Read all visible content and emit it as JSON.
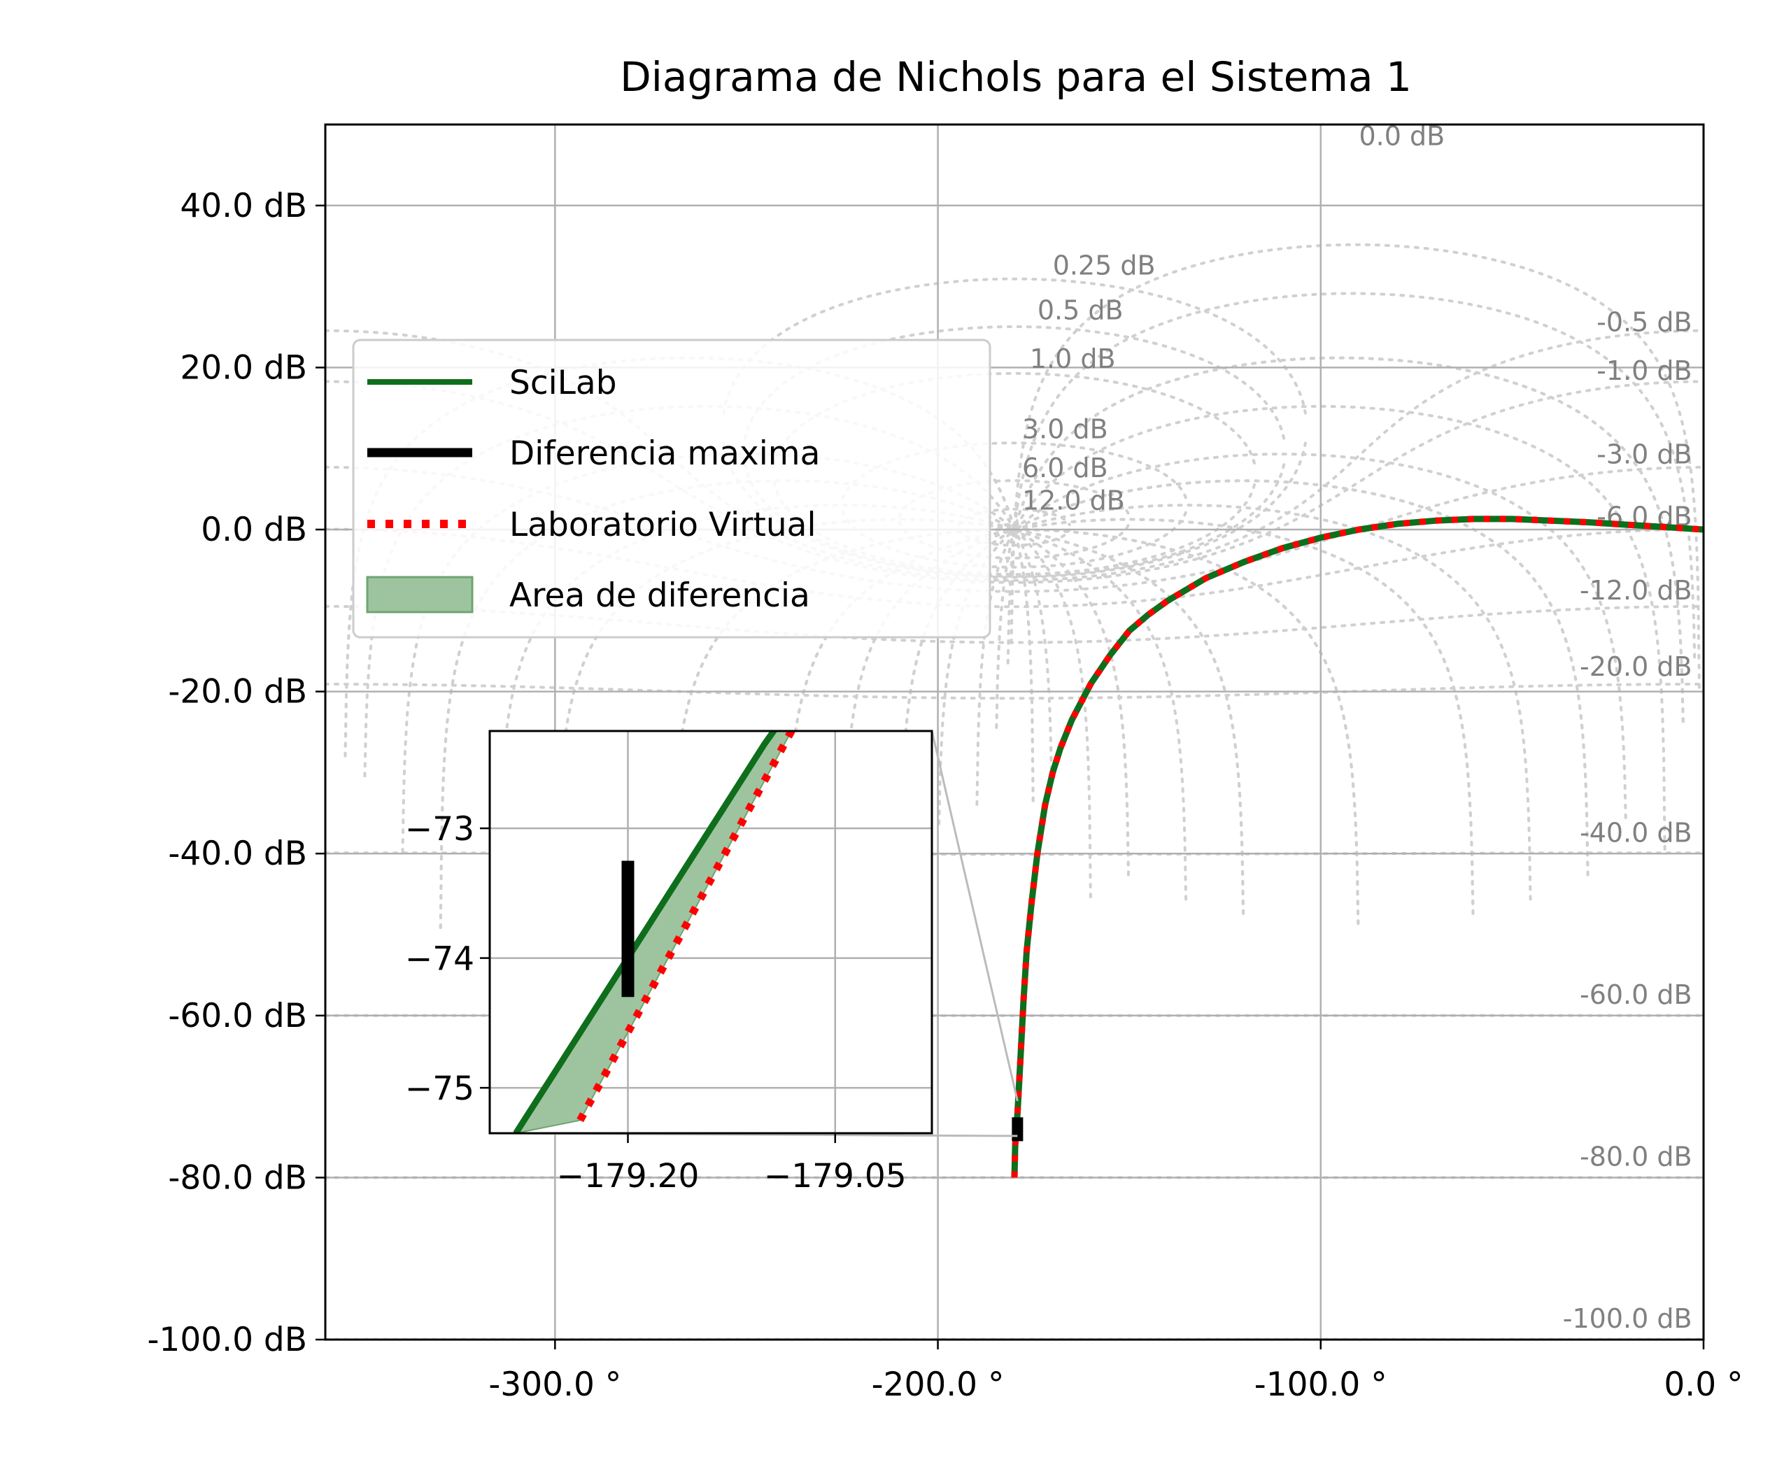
{
  "chart_data": {
    "type": "line",
    "title": "Diagrama de Nichols para el Sistema 1",
    "xlim": [
      -360,
      0
    ],
    "ylim": [
      -100,
      50
    ],
    "x_ticks": [
      {
        "value": -300,
        "label": "-300.0 °"
      },
      {
        "value": -200,
        "label": "-200.0 °"
      },
      {
        "value": -100,
        "label": "-100.0 °"
      },
      {
        "value": 0,
        "label": "0.0 °"
      }
    ],
    "y_ticks": [
      {
        "value": 40,
        "label": "40.0 dB"
      },
      {
        "value": 20,
        "label": "20.0 dB"
      },
      {
        "value": 0,
        "label": "0.0 dB"
      },
      {
        "value": -20,
        "label": "-20.0 dB"
      },
      {
        "value": -40,
        "label": "-40.0 dB"
      },
      {
        "value": -60,
        "label": "-60.0 dB"
      },
      {
        "value": -80,
        "label": "-80.0 dB"
      },
      {
        "value": -100,
        "label": "-100.0 dB"
      }
    ],
    "grid": true,
    "legend_position": "upper-left",
    "legend": [
      {
        "label": "SciLab",
        "style": "line"
      },
      {
        "label": "Diferencia maxima",
        "style": "thick-line"
      },
      {
        "label": "Laboratorio Virtual",
        "style": "dotted"
      },
      {
        "label": "Area de diferencia",
        "style": "patch"
      }
    ],
    "series": [
      {
        "name": "SciLab",
        "color": "#0e6e1c",
        "x": [
          -180,
          -179.8,
          -179.2,
          -178.4,
          -177.6,
          -176.8,
          -175.5,
          -174,
          -172,
          -170,
          -168,
          -165,
          -160,
          -155,
          -150,
          -145,
          -140,
          -130,
          -120,
          -110,
          -100,
          -90,
          -80,
          -70,
          -60,
          -50,
          -40,
          -30,
          -20,
          -10,
          0
        ],
        "y": [
          -80,
          -76,
          -72,
          -65,
          -58,
          -52,
          -46,
          -40,
          -34,
          -30,
          -27,
          -23.5,
          -19,
          -15.5,
          -12.5,
          -10.5,
          -8.8,
          -6,
          -4,
          -2.3,
          -1,
          0,
          0.7,
          1.1,
          1.3,
          1.3,
          1.1,
          0.9,
          0.6,
          0.3,
          0
        ]
      },
      {
        "name": "Laboratorio Virtual",
        "color": "#ff0000",
        "x": [
          -180,
          -179.8,
          -179.2,
          -178.4,
          -177.6,
          -176.8,
          -175.5,
          -174,
          -172,
          -170,
          -168,
          -165,
          -160,
          -155,
          -150,
          -145,
          -140,
          -130,
          -120,
          -110,
          -100,
          -90,
          -80,
          -70,
          -60,
          -50,
          -40,
          -30,
          -20,
          -10,
          0
        ],
        "y": [
          -80,
          -76,
          -72,
          -65,
          -58,
          -52,
          -46,
          -40,
          -34,
          -30,
          -27,
          -23.5,
          -19,
          -15.5,
          -12.5,
          -10.5,
          -8.8,
          -6,
          -4,
          -2.3,
          -1,
          0,
          0.7,
          1.1,
          1.3,
          1.3,
          1.1,
          0.9,
          0.6,
          0.3,
          0
        ]
      }
    ],
    "nichols_grid": {
      "color": "#d0d0d0",
      "closed_loop_magnitudes": [
        0.25,
        0.5,
        1,
        3,
        6,
        12,
        -0.5,
        -1,
        -3,
        -6,
        -12,
        -20,
        -40,
        -60,
        -80,
        -100
      ],
      "labels": [
        {
          "text": "0.0 dB",
          "x": -90,
          "y": 48.5
        },
        {
          "text": "0.25 dB",
          "x": -170,
          "y": 32.5
        },
        {
          "text": "0.5 dB",
          "x": -174,
          "y": 27
        },
        {
          "text": "1.0 dB",
          "x": -176,
          "y": 21
        },
        {
          "text": "3.0 dB",
          "x": -178,
          "y": 12.3
        },
        {
          "text": "6.0 dB",
          "x": -178,
          "y": 7.5
        },
        {
          "text": "12.0 dB",
          "x": -178,
          "y": 3.5
        },
        {
          "text": "-0.5 dB",
          "x": -3,
          "y": 25.5
        },
        {
          "text": "-1.0 dB",
          "x": -3,
          "y": 19.5
        },
        {
          "text": "-3.0 dB",
          "x": -3,
          "y": 9.2
        },
        {
          "text": "-6.0 dB",
          "x": -3,
          "y": 1.5
        },
        {
          "text": "-12.0 dB",
          "x": -3,
          "y": -7.6
        },
        {
          "text": "-20.0 dB",
          "x": -3,
          "y": -17
        },
        {
          "text": "-40.0 dB",
          "x": -3,
          "y": -37.5
        },
        {
          "text": "-60.0 dB",
          "x": -3,
          "y": -57.5
        },
        {
          "text": "-80.0 dB",
          "x": -3,
          "y": -77.5
        },
        {
          "text": "-100.0 dB",
          "x": -3,
          "y": -97.5
        }
      ]
    },
    "inset": {
      "xlim": [
        -179.3,
        -178.98
      ],
      "ylim": [
        -75.35,
        -72.25
      ],
      "x_ticks": [
        {
          "value": -179.2,
          "label": "−179.20"
        },
        {
          "value": -179.05,
          "label": "−179.05"
        }
      ],
      "y_ticks": [
        {
          "value": -73,
          "label": "−73"
        },
        {
          "value": -74,
          "label": "−74"
        },
        {
          "value": -75,
          "label": "−75"
        }
      ],
      "scilab": {
        "x": [
          -179.2811,
          -179.2511,
          -179.2211,
          -179.1911,
          -179.1611,
          -179.1311,
          -179.1011,
          -179.0811
        ],
        "y": [
          -75.35,
          -74.85,
          -74.35,
          -73.85,
          -73.35,
          -72.85,
          -72.35,
          -72.05
        ]
      },
      "lab": {
        "x": [
          -179.2346,
          -179.2091,
          -179.1836,
          -179.1581,
          -179.1326,
          -179.1071,
          -179.0816,
          -179.0546
        ],
        "y": [
          -75.25,
          -74.75,
          -74.25,
          -73.75,
          -73.25,
          -72.75,
          -72.25,
          -71.72
        ]
      },
      "max_diff": {
        "x": -179.2,
        "y0": -73.25,
        "y1": -74.3
      }
    }
  }
}
